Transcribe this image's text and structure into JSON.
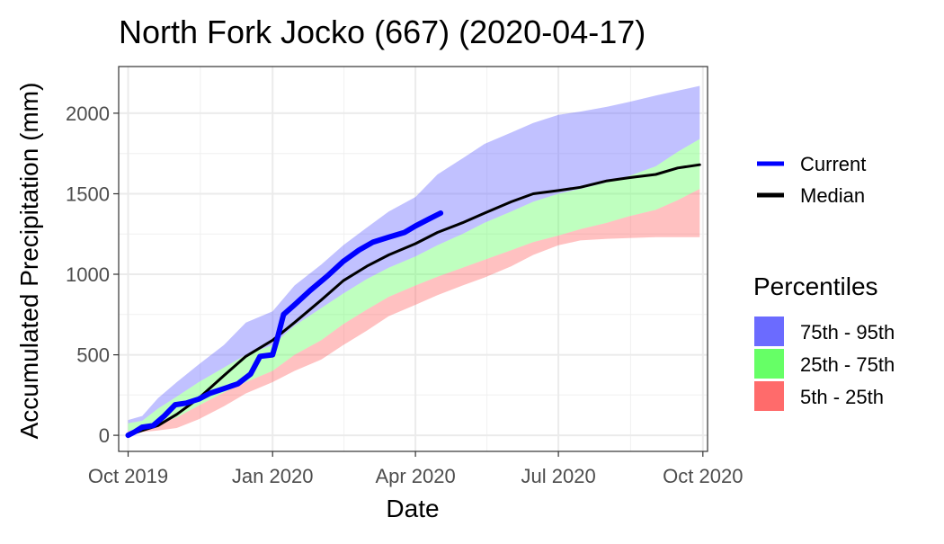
{
  "chart_data": {
    "type": "area",
    "title": "North Fork Jocko (667) (2020-04-17)",
    "xlabel": "Date",
    "ylabel": "Accumulated Precipitation (mm)",
    "x_ticks": [
      "Oct 2019",
      "Jan 2020",
      "Apr 2020",
      "Jul 2020",
      "Oct 2020"
    ],
    "x_tick_dates": [
      "2019-10-01",
      "2020-01-01",
      "2020-04-01",
      "2020-07-01",
      "2020-10-01"
    ],
    "xlim": [
      "2019-09-25",
      "2020-10-04"
    ],
    "y_ticks": [
      0,
      500,
      1000,
      1500,
      2000
    ],
    "ylim": [
      -100,
      2290
    ],
    "grid": true,
    "legend_position": "right",
    "colors": {
      "current": "#0000ff",
      "median": "#000000",
      "band_75_95": "#6b6bff",
      "band_25_75": "#66ff66",
      "band_5_25": "#ff6b6b",
      "band_opacity": 0.42
    },
    "bands": [
      {
        "name": "75th - 95th",
        "color": "#6b6bff",
        "points": [
          [
            "2019-10-01",
            75,
            95
          ],
          [
            "2019-10-10",
            90,
            120
          ],
          [
            "2019-10-20",
            165,
            230
          ],
          [
            "2019-11-01",
            240,
            330
          ],
          [
            "2019-11-15",
            330,
            440
          ],
          [
            "2019-12-01",
            420,
            560
          ],
          [
            "2019-12-15",
            500,
            700
          ],
          [
            "2020-01-01",
            560,
            770
          ],
          [
            "2020-01-15",
            680,
            930
          ],
          [
            "2020-02-01",
            790,
            1060
          ],
          [
            "2020-02-15",
            880,
            1180
          ],
          [
            "2020-03-01",
            970,
            1290
          ],
          [
            "2020-03-15",
            1040,
            1390
          ],
          [
            "2020-04-01",
            1110,
            1480
          ],
          [
            "2020-04-15",
            1180,
            1620
          ],
          [
            "2020-05-01",
            1250,
            1720
          ],
          [
            "2020-05-15",
            1320,
            1810
          ],
          [
            "2020-06-01",
            1390,
            1880
          ],
          [
            "2020-06-15",
            1450,
            1940
          ],
          [
            "2020-07-01",
            1500,
            1990
          ],
          [
            "2020-07-15",
            1530,
            2010
          ],
          [
            "2020-08-01",
            1570,
            2040
          ],
          [
            "2020-08-15",
            1610,
            2070
          ],
          [
            "2020-09-01",
            1670,
            2110
          ],
          [
            "2020-09-15",
            1760,
            2140
          ],
          [
            "2020-09-29",
            1840,
            2170
          ]
        ]
      },
      {
        "name": "25th - 75th",
        "color": "#66ff66",
        "points": [
          [
            "2019-10-01",
            25,
            75
          ],
          [
            "2019-10-10",
            45,
            90
          ],
          [
            "2019-10-20",
            70,
            165
          ],
          [
            "2019-11-01",
            110,
            240
          ],
          [
            "2019-11-15",
            185,
            330
          ],
          [
            "2019-12-01",
            265,
            420
          ],
          [
            "2019-12-15",
            330,
            500
          ],
          [
            "2020-01-01",
            400,
            560
          ],
          [
            "2020-01-15",
            500,
            680
          ],
          [
            "2020-02-01",
            590,
            790
          ],
          [
            "2020-02-15",
            690,
            880
          ],
          [
            "2020-03-01",
            780,
            970
          ],
          [
            "2020-03-15",
            860,
            1040
          ],
          [
            "2020-04-01",
            930,
            1110
          ],
          [
            "2020-04-15",
            985,
            1180
          ],
          [
            "2020-05-01",
            1040,
            1250
          ],
          [
            "2020-05-15",
            1090,
            1320
          ],
          [
            "2020-06-01",
            1150,
            1390
          ],
          [
            "2020-06-15",
            1200,
            1450
          ],
          [
            "2020-07-01",
            1240,
            1500
          ],
          [
            "2020-07-15",
            1280,
            1530
          ],
          [
            "2020-08-01",
            1320,
            1570
          ],
          [
            "2020-08-15",
            1360,
            1610
          ],
          [
            "2020-09-01",
            1400,
            1670
          ],
          [
            "2020-09-15",
            1460,
            1760
          ],
          [
            "2020-09-29",
            1530,
            1840
          ]
        ]
      },
      {
        "name": "5th - 25th",
        "color": "#ff6b6b",
        "points": [
          [
            "2019-10-01",
            10,
            25
          ],
          [
            "2019-10-10",
            20,
            45
          ],
          [
            "2019-10-20",
            30,
            70
          ],
          [
            "2019-11-01",
            45,
            110
          ],
          [
            "2019-11-15",
            100,
            185
          ],
          [
            "2019-12-01",
            180,
            265
          ],
          [
            "2019-12-15",
            260,
            330
          ],
          [
            "2020-01-01",
            330,
            400
          ],
          [
            "2020-01-15",
            400,
            500
          ],
          [
            "2020-02-01",
            470,
            590
          ],
          [
            "2020-02-15",
            560,
            690
          ],
          [
            "2020-03-01",
            650,
            780
          ],
          [
            "2020-03-15",
            740,
            860
          ],
          [
            "2020-04-01",
            810,
            930
          ],
          [
            "2020-04-15",
            870,
            985
          ],
          [
            "2020-05-01",
            930,
            1040
          ],
          [
            "2020-05-15",
            980,
            1090
          ],
          [
            "2020-06-01",
            1050,
            1150
          ],
          [
            "2020-06-15",
            1120,
            1200
          ],
          [
            "2020-07-01",
            1180,
            1240
          ],
          [
            "2020-07-15",
            1210,
            1280
          ],
          [
            "2020-08-01",
            1220,
            1320
          ],
          [
            "2020-08-15",
            1225,
            1360
          ],
          [
            "2020-09-01",
            1230,
            1400
          ],
          [
            "2020-09-15",
            1230,
            1460
          ],
          [
            "2020-09-29",
            1230,
            1530
          ]
        ]
      }
    ],
    "series": [
      {
        "name": "Current",
        "color": "#0000ff",
        "points": [
          [
            "2019-10-01",
            0
          ],
          [
            "2019-10-05",
            20
          ],
          [
            "2019-10-10",
            50
          ],
          [
            "2019-10-17",
            60
          ],
          [
            "2019-10-24",
            120
          ],
          [
            "2019-10-31",
            190
          ],
          [
            "2019-11-07",
            200
          ],
          [
            "2019-11-15",
            225
          ],
          [
            "2019-11-22",
            260
          ],
          [
            "2019-12-01",
            290
          ],
          [
            "2019-12-10",
            320
          ],
          [
            "2019-12-18",
            380
          ],
          [
            "2019-12-24",
            490
          ],
          [
            "2020-01-01",
            500
          ],
          [
            "2020-01-04",
            600
          ],
          [
            "2020-01-08",
            750
          ],
          [
            "2020-01-15",
            810
          ],
          [
            "2020-01-25",
            900
          ],
          [
            "2020-02-05",
            990
          ],
          [
            "2020-02-15",
            1080
          ],
          [
            "2020-02-25",
            1150
          ],
          [
            "2020-03-05",
            1200
          ],
          [
            "2020-03-15",
            1230
          ],
          [
            "2020-03-25",
            1260
          ],
          [
            "2020-04-01",
            1300
          ],
          [
            "2020-04-10",
            1345
          ],
          [
            "2020-04-17",
            1380
          ]
        ]
      },
      {
        "name": "Median",
        "color": "#000000",
        "points": [
          [
            "2019-10-01",
            0
          ],
          [
            "2019-10-10",
            30
          ],
          [
            "2019-10-20",
            60
          ],
          [
            "2019-11-01",
            130
          ],
          [
            "2019-11-15",
            230
          ],
          [
            "2019-12-01",
            370
          ],
          [
            "2019-12-15",
            490
          ],
          [
            "2020-01-01",
            590
          ],
          [
            "2020-01-15",
            700
          ],
          [
            "2020-02-01",
            840
          ],
          [
            "2020-02-15",
            960
          ],
          [
            "2020-03-01",
            1050
          ],
          [
            "2020-03-15",
            1120
          ],
          [
            "2020-04-01",
            1190
          ],
          [
            "2020-04-15",
            1260
          ],
          [
            "2020-05-01",
            1320
          ],
          [
            "2020-05-15",
            1380
          ],
          [
            "2020-06-01",
            1450
          ],
          [
            "2020-06-15",
            1500
          ],
          [
            "2020-07-01",
            1520
          ],
          [
            "2020-07-15",
            1540
          ],
          [
            "2020-08-01",
            1580
          ],
          [
            "2020-08-15",
            1600
          ],
          [
            "2020-09-01",
            1620
          ],
          [
            "2020-09-15",
            1660
          ],
          [
            "2020-09-29",
            1680
          ]
        ]
      }
    ],
    "legend": {
      "lines": [
        {
          "label": "Current",
          "color": "#0000ff"
        },
        {
          "label": "Median",
          "color": "#000000"
        }
      ],
      "fill_title": "Percentiles",
      "fills": [
        {
          "label": "75th - 95th",
          "color": "#6b6bff"
        },
        {
          "label": "25th - 75th",
          "color": "#66ff66"
        },
        {
          "label": "5th - 25th",
          "color": "#ff6b6b"
        }
      ]
    }
  }
}
